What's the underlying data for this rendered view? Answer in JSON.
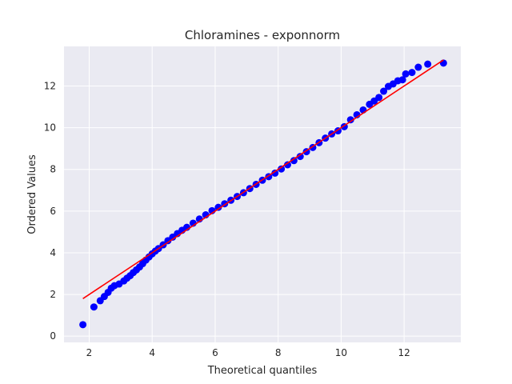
{
  "chart_data": {
    "type": "scatter",
    "title": "Chloramines - exponnorm",
    "xlabel": "Theoretical quantiles",
    "ylabel": "Ordered Values",
    "xlim": [
      1.2,
      13.8
    ],
    "ylim": [
      -0.3,
      13.9
    ],
    "xticks": [
      "2",
      "4",
      "6",
      "8",
      "10",
      "12"
    ],
    "yticks": [
      "0",
      "2",
      "4",
      "6",
      "8",
      "10",
      "12"
    ],
    "grid": true,
    "colors": {
      "background": "#eaeaf2",
      "grid": "#ffffff",
      "points": "#0000ff",
      "fit_line": "#ff0000"
    },
    "series": [
      {
        "kind": "points",
        "x": [
          1.8,
          2.15,
          2.35,
          2.48,
          2.6,
          2.7,
          2.8,
          2.95,
          3.1,
          3.2,
          3.3,
          3.4,
          3.5,
          3.6,
          3.7,
          3.8,
          3.9,
          4.0,
          4.1,
          4.2,
          4.35,
          4.5,
          4.65,
          4.8,
          4.95,
          5.1,
          5.3,
          5.5,
          5.7,
          5.9,
          6.1,
          6.3,
          6.5,
          6.7,
          6.9,
          7.1,
          7.3,
          7.5,
          7.7,
          7.9,
          8.1,
          8.3,
          8.5,
          8.7,
          8.9,
          9.1,
          9.3,
          9.5,
          9.7,
          9.9,
          10.1,
          10.3,
          10.5,
          10.7,
          10.9,
          11.05,
          11.2,
          11.35,
          11.5,
          11.65,
          11.8,
          11.95,
          12.05,
          12.25,
          12.45,
          12.75,
          13.25
        ],
        "y": [
          0.55,
          1.4,
          1.7,
          1.9,
          2.1,
          2.3,
          2.42,
          2.5,
          2.65,
          2.78,
          2.9,
          3.05,
          3.18,
          3.32,
          3.48,
          3.65,
          3.8,
          3.95,
          4.08,
          4.2,
          4.38,
          4.58,
          4.75,
          4.92,
          5.08,
          5.22,
          5.42,
          5.62,
          5.82,
          6.02,
          6.18,
          6.35,
          6.52,
          6.7,
          6.88,
          7.08,
          7.28,
          7.48,
          7.65,
          7.82,
          8.02,
          8.22,
          8.42,
          8.62,
          8.85,
          9.05,
          9.28,
          9.5,
          9.7,
          9.85,
          10.05,
          10.38,
          10.62,
          10.85,
          11.12,
          11.28,
          11.45,
          11.75,
          11.98,
          12.1,
          12.25,
          12.3,
          12.58,
          12.65,
          12.9,
          13.05,
          13.1
        ]
      },
      {
        "kind": "fit-line",
        "x": [
          1.8,
          13.25
        ],
        "y": [
          1.8,
          13.25
        ]
      }
    ]
  }
}
